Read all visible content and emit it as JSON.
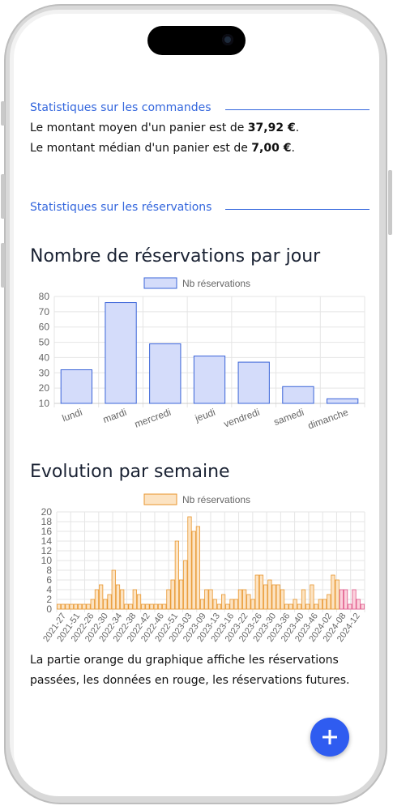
{
  "orders": {
    "title": "Statistiques sur les commandes",
    "mean_prefix": "Le montant moyen d'un panier est de ",
    "mean_value": "37,92 €",
    "mean_suffix": ".",
    "median_prefix": "Le montant médian d'un panier est de ",
    "median_value": "7,00 €",
    "median_suffix": "."
  },
  "reservations": {
    "title": "Statistiques sur les réservations"
  },
  "charts": {
    "by_day_title": "Nombre de réservations par jour",
    "by_week_title": "Evolution par semaine"
  },
  "note": "La partie orange du graphique affiche les réservations passées, les données en rouge, les réservations futures.",
  "fab_icon": "plus-icon",
  "colors": {
    "accent": "#3366dd",
    "fab": "#2f5cf0",
    "bar_blue_fill": "#d4dcfa",
    "bar_blue_stroke": "#3a64d8",
    "bar_orange_fill": "#fce3c2",
    "bar_orange_stroke": "#e8962e",
    "bar_red_fill": "#fbd1dc",
    "bar_red_stroke": "#e0588a"
  },
  "chart_data": [
    {
      "type": "bar",
      "categories": [
        "lundi",
        "mardi",
        "mercredi",
        "jeudi",
        "vendredi",
        "samedi",
        "dimanche"
      ],
      "series": [
        {
          "name": "Nb réservations",
          "values": [
            32,
            76,
            49,
            41,
            37,
            21,
            13
          ]
        }
      ],
      "ylim": [
        10,
        80
      ],
      "yticks": [
        10,
        20,
        30,
        40,
        50,
        60,
        70,
        80
      ],
      "legend": "top",
      "grid": true
    },
    {
      "type": "bar",
      "tick_labels": [
        "2021-27",
        "2021-51",
        "2022-26",
        "2022-30",
        "2022-34",
        "2022-38",
        "2022-42",
        "2022-46",
        "2022-51",
        "2023-03",
        "2023-09",
        "2023-13",
        "2023-16",
        "2023-22",
        "2023-26",
        "2023-30",
        "2023-36",
        "2023-40",
        "2023-46",
        "2024-02",
        "2024-08",
        "2024-12"
      ],
      "series": [
        {
          "name": "Nb réservations",
          "values": [
            1,
            1,
            1,
            1,
            1,
            1,
            1,
            1,
            2,
            4,
            5,
            2,
            3,
            8,
            5,
            4,
            1,
            1,
            4,
            3,
            1,
            1,
            1,
            1,
            1,
            1,
            4,
            6,
            14,
            6,
            10,
            19,
            16,
            17,
            2,
            4,
            4,
            2,
            1,
            3,
            1,
            2,
            2,
            4,
            4,
            3,
            2,
            7,
            7,
            5,
            6,
            5,
            5,
            4,
            1,
            1,
            2,
            1,
            4,
            1,
            5,
            1,
            2,
            2,
            3,
            7,
            6,
            4,
            4,
            1,
            4,
            2,
            1
          ],
          "future_from_index": 67
        }
      ],
      "ylim": [
        0,
        20
      ],
      "yticks": [
        0,
        2,
        4,
        6,
        8,
        10,
        12,
        14,
        16,
        18,
        20
      ],
      "legend": "top",
      "grid": true
    }
  ]
}
